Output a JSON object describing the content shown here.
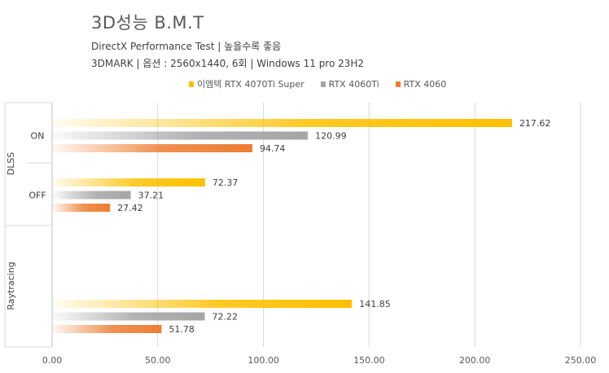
{
  "header": {
    "title": "3D성능 B.M.T",
    "subtitle1": "DirectX Performance Test | 높을수록 좋음",
    "subtitle2": "3DMARK | 옵션 : 2560x1440, 6회 | Windows 11 pro 23H2"
  },
  "chart_data": {
    "type": "bar",
    "orientation": "horizontal",
    "xlim": [
      0,
      250
    ],
    "xticks": [
      0,
      50,
      100,
      150,
      200,
      250
    ],
    "xtick_labels": [
      "0.00",
      "50.00",
      "100.00",
      "150.00",
      "200.00",
      "250.00"
    ],
    "grid": true,
    "legend_position": "top",
    "groups": [
      {
        "outer": "DLSS",
        "inner": "ON"
      },
      {
        "outer": "DLSS",
        "inner": "OFF"
      },
      {
        "outer": "Raytracing",
        "inner": ""
      }
    ],
    "series": [
      {
        "name": "이엠텍 RTX 4070Ti Super",
        "color": "#FFC000",
        "values": [
          217.62,
          72.37,
          141.85
        ]
      },
      {
        "name": "RTX 4060Ti",
        "color": "#A5A5A5",
        "values": [
          120.99,
          37.21,
          72.22
        ]
      },
      {
        "name": "RTX 4060",
        "color": "#ED7D31",
        "values": [
          94.74,
          27.42,
          51.78
        ]
      }
    ],
    "value_labels": [
      [
        "217.62",
        "72.37",
        "141.85"
      ],
      [
        "120.99",
        "37.21",
        "72.22"
      ],
      [
        "94.74",
        "27.42",
        "51.78"
      ]
    ]
  }
}
